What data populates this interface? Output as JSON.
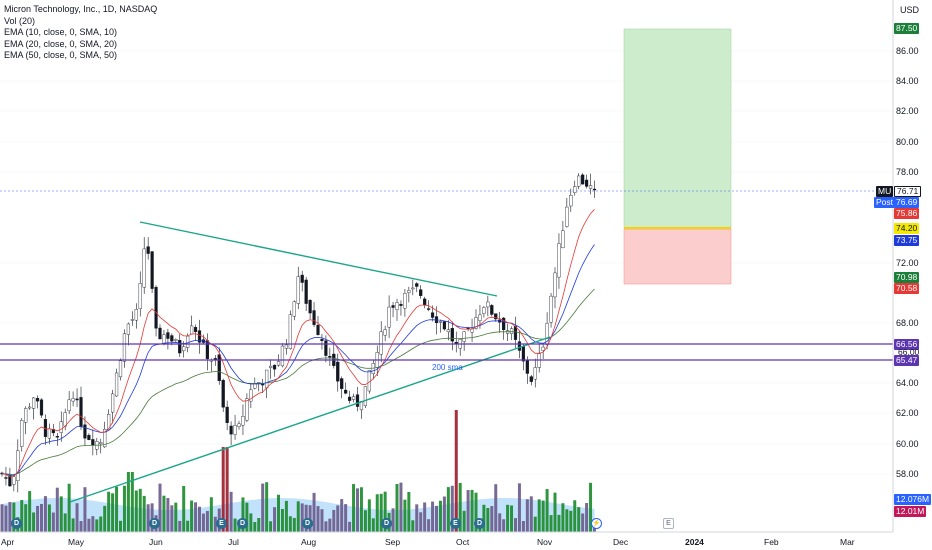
{
  "header": {
    "title": "Micron Technology, Inc., 1D, NASDAQ",
    "volume": "Vol (20)",
    "ema10": "EMA (10, close, 0, SMA, 10)",
    "ema20": "EMA (20, close, 0, SMA, 20)",
    "ema50": "EMA (50, close, 0, SMA, 50)"
  },
  "currency": "USD",
  "price_axis": [
    "86.00",
    "84.00",
    "82.00",
    "80.00",
    "78.00",
    "72.00",
    "68.00",
    "64.00",
    "62.00",
    "60.00",
    "58.00"
  ],
  "badges": {
    "target": "87.50",
    "symbol": "MU",
    "last": "76.71",
    "post_label": "Post",
    "post": "76.69",
    "ema10": "75.86",
    "entry": "74.20",
    "ema20": "73.75",
    "stop_top": "70.98",
    "stop": "70.58",
    "level_high": "66.56",
    "level_mid": "66.00",
    "level_low": "65.47",
    "vol1": "12.076M",
    "vol2": "12.01M"
  },
  "annotation": "200 sma",
  "time_axis": [
    "Apr",
    "May",
    "Jun",
    "Jul",
    "Aug",
    "Sep",
    "Oct",
    "Nov",
    "Dec",
    "2024",
    "Feb",
    "Mar"
  ],
  "events": [
    "D",
    "D",
    "D",
    "E",
    "D",
    "D",
    "E",
    "D",
    "E"
  ],
  "colors": {
    "up": "#089981",
    "down": "#f23645",
    "ema10": "#e53935",
    "ema20": "#1e3ad8",
    "ema50": "#4a7a3a",
    "trend": "#1aa58a",
    "level": "#5e35b1",
    "target": "#c8e6c9",
    "stop": "#ffcdd2"
  }
}
